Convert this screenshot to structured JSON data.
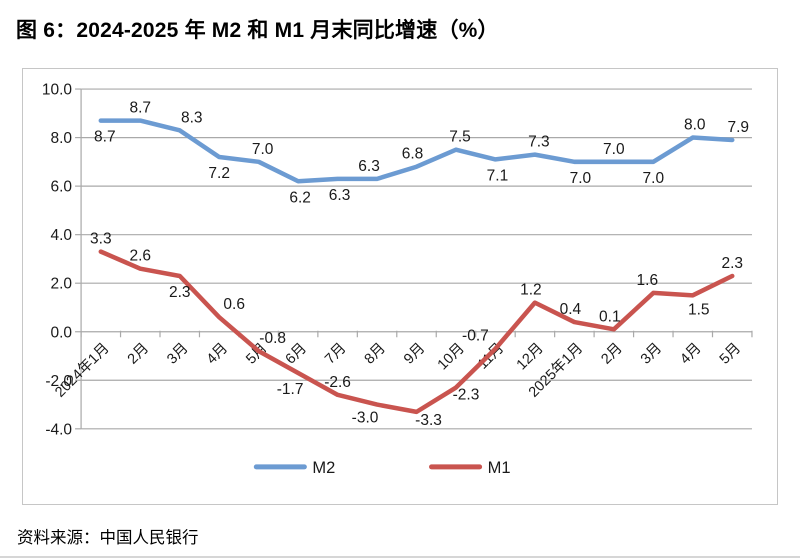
{
  "title": "图 6：2024-2025 年 M2 和 M1 月末同比增速（%）",
  "source": "资料来源：中国人民银行",
  "chart_data": {
    "type": "line",
    "title": "图 6：2024-2025 年 M2 和 M1 月末同比增速（%）",
    "categories": [
      "2024年1月",
      "2月",
      "3月",
      "4月",
      "5月",
      "6月",
      "7月",
      "8月",
      "9月",
      "10月",
      "11月",
      "12月",
      "2025年1月",
      "2月",
      "3月",
      "4月",
      "5月"
    ],
    "series": [
      {
        "name": "M2",
        "color": "#6C9BD2",
        "values": [
          8.7,
          8.7,
          8.3,
          7.2,
          7.0,
          6.2,
          6.3,
          6.3,
          6.8,
          7.5,
          7.1,
          7.3,
          7.0,
          7.0,
          7.0,
          8.0,
          7.9
        ],
        "label_sides": [
          "below",
          "above",
          "above",
          "below",
          "above",
          "below",
          "below",
          "above",
          "above",
          "above",
          "below",
          "above",
          "below",
          "above",
          "below",
          "above",
          "above"
        ],
        "label_dx": [
          4,
          0,
          12,
          0,
          4,
          2,
          2,
          -8,
          -4,
          4,
          2,
          4,
          6,
          0,
          0,
          2,
          6
        ],
        "label_dy": [
          0,
          0,
          0,
          0,
          0,
          0,
          0,
          0,
          0,
          0,
          0,
          0,
          0,
          0,
          0,
          0,
          0
        ]
      },
      {
        "name": "M1",
        "color": "#C9544F",
        "values": [
          3.3,
          2.6,
          2.3,
          0.6,
          -0.8,
          -1.7,
          -2.6,
          -3.0,
          -3.3,
          -2.3,
          -0.7,
          1.2,
          0.4,
          0.1,
          1.6,
          1.5,
          2.3
        ],
        "label_sides": [
          "above",
          "above",
          "below",
          "above",
          "above",
          "below",
          "above",
          "below",
          "below",
          "below",
          "above",
          "above",
          "above",
          "above",
          "above",
          "below",
          "above"
        ],
        "label_dx": [
          0,
          0,
          0,
          15,
          14,
          -8,
          0,
          -12,
          12,
          10,
          -20,
          -4,
          -4,
          -4,
          -6,
          6,
          0
        ],
        "label_dy": [
          0,
          0,
          0,
          0,
          0,
          0,
          0,
          -3,
          -8,
          -9,
          0,
          0,
          0,
          0,
          0,
          -2,
          0
        ]
      }
    ],
    "ylim": [
      -4.0,
      10.0
    ],
    "ytick_step": 2.0,
    "yticks": [
      "10.0",
      "8.0",
      "6.0",
      "4.0",
      "2.0",
      "0.0",
      "-2.0",
      "-4.0"
    ],
    "value_decimals": 1,
    "grid": "horizontal",
    "grid_color": "#A9A9A9",
    "legend_position": "bottom",
    "legend": [
      "M2",
      "M1"
    ]
  }
}
